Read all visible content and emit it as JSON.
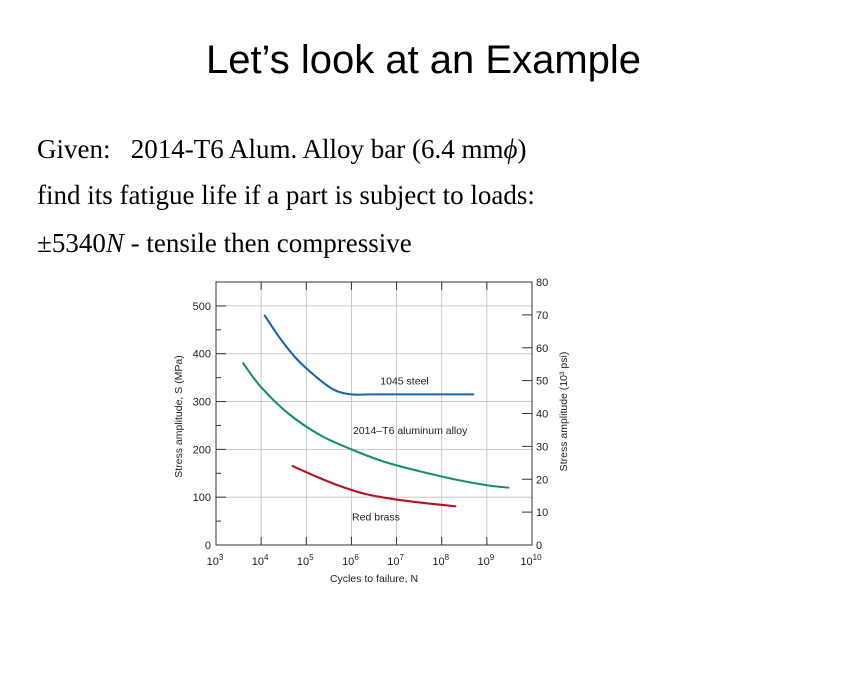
{
  "slide": {
    "title": "Let’s look at an Example",
    "line1": {
      "given_label": "Given:",
      "given_text": "2014-T6 Alum. Alloy bar (6.4 mm",
      "phi": "ϕ",
      "close": ")"
    },
    "line2": "find its fatigue life if a part is subject to loads:",
    "line3": {
      "pm": "±5340",
      "N": "N",
      "rest": " - tensile then compressive"
    }
  },
  "chart_data": {
    "type": "line",
    "xlabel": "Cycles to failure, N",
    "ylabel": "Stress amplitude, S (MPa)",
    "ylabel_right": "Stress amplitude (10³ psi)",
    "x_scale": "log",
    "x_ticks": [
      {
        "base": "10",
        "exp": "3"
      },
      {
        "base": "10",
        "exp": "4"
      },
      {
        "base": "10",
        "exp": "5"
      },
      {
        "base": "10",
        "exp": "6"
      },
      {
        "base": "10",
        "exp": "7"
      },
      {
        "base": "10",
        "exp": "8"
      },
      {
        "base": "10",
        "exp": "9"
      },
      {
        "base": "10",
        "exp": "10"
      }
    ],
    "xlim": [
      1000,
      10000000000
    ],
    "ylim": [
      0,
      550
    ],
    "y_ticks": [
      "0",
      "100",
      "200",
      "300",
      "400",
      "500"
    ],
    "y_right_ticks": [
      "0",
      "10",
      "20",
      "30",
      "40",
      "50",
      "60",
      "70",
      "80"
    ],
    "y_right_lim": [
      0,
      80
    ],
    "grid": true,
    "series": [
      {
        "name": "1045 steel",
        "color": "#1f63b0",
        "points": [
          [
            12000,
            480
          ],
          [
            25000,
            435
          ],
          [
            60000,
            390
          ],
          [
            150000,
            355
          ],
          [
            400000,
            325
          ],
          [
            1000000,
            315
          ],
          [
            3000000,
            315
          ],
          [
            100000000,
            315
          ],
          [
            500000000,
            315
          ]
        ]
      },
      {
        "name": "2014–T6 aluminum alloy",
        "color": "#17906a",
        "points": [
          [
            4000,
            380
          ],
          [
            10000,
            330
          ],
          [
            40000,
            275
          ],
          [
            200000,
            230
          ],
          [
            1000000,
            200
          ],
          [
            5000000,
            175
          ],
          [
            30000000,
            155
          ],
          [
            200000000,
            137
          ],
          [
            1000000000,
            125
          ],
          [
            3000000000,
            120
          ]
        ]
      },
      {
        "name": "Red brass",
        "color": "#b5121b",
        "points": [
          [
            50000,
            165
          ],
          [
            150000,
            145
          ],
          [
            500000,
            125
          ],
          [
            2000000,
            107
          ],
          [
            10000000,
            95
          ],
          [
            50000000,
            87
          ],
          [
            200000000,
            81
          ]
        ]
      }
    ]
  }
}
